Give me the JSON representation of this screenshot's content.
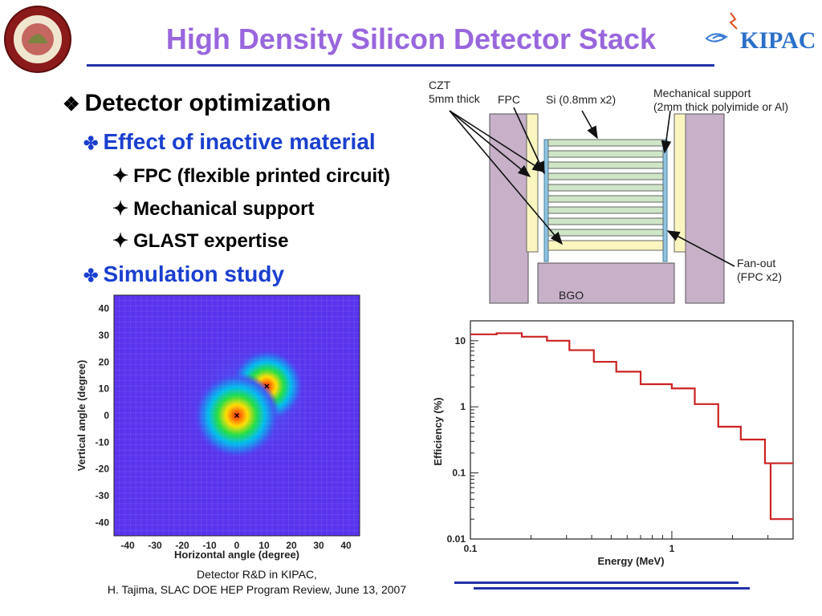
{
  "slide": {
    "title": "High Density Silicon Detector Stack",
    "logo_kipac": "KIPAC",
    "bullets": {
      "main": "Detector optimization",
      "sub1": "Effect of inactive material",
      "items": [
        "FPC (flexible printed circuit)",
        "Mechanical support",
        "GLAST expertise"
      ],
      "sub2": "Simulation study"
    },
    "footer": {
      "line1": "Detector R&D in KIPAC,",
      "line2": "H. Tajima, SLAC DOE HEP Program Review, June 13, 2007"
    },
    "colors": {
      "title": "#9966dd",
      "accent_line": "#2233aa",
      "sub_bullet": "#1a3fcf"
    }
  },
  "diagram": {
    "labels": {
      "czt": "CZT\n5mm thick",
      "fpc": "FPC",
      "si": "Si (0.8mm x2)",
      "mech": "Mechanical support\n(2mm thick polyimide or Al)",
      "fanout": "Fan-out\n(FPC x2)",
      "bgo": "BGO"
    }
  },
  "chart_data": [
    {
      "type": "heatmap",
      "xlabel": "Horizontal angle (degree)",
      "ylabel": "Vertical angle (degree)",
      "xlim": [
        -45,
        45
      ],
      "ylim": [
        -45,
        45
      ],
      "xticks": [
        -40,
        -30,
        -20,
        -10,
        0,
        10,
        20,
        30,
        40
      ],
      "yticks": [
        -40,
        -30,
        -20,
        -10,
        0,
        10,
        20,
        30,
        40
      ],
      "markers": [
        {
          "x": 0,
          "y": 0
        },
        {
          "x": 11,
          "y": 11
        }
      ]
    },
    {
      "type": "line",
      "step": true,
      "xlabel": "Energy (MeV)",
      "ylabel": "Efficiency (%)",
      "log_x": true,
      "log_y": true,
      "xlim": [
        0.1,
        4
      ],
      "ylim": [
        0.01,
        20
      ],
      "xtick_labels": [
        "0.1",
        "1"
      ],
      "ytick_labels": [
        "0.01",
        "0.1",
        "1",
        "10"
      ],
      "color": "#cc2222",
      "x": [
        0.1,
        0.135,
        0.18,
        0.24,
        0.31,
        0.41,
        0.53,
        0.7,
        1.0,
        1.3,
        1.7,
        2.2,
        2.9
      ],
      "y": [
        12.5,
        13,
        11.5,
        10,
        7.2,
        4.8,
        3.4,
        2.2,
        1.9,
        1.1,
        0.5,
        0.32,
        0.14
      ]
    }
  ]
}
